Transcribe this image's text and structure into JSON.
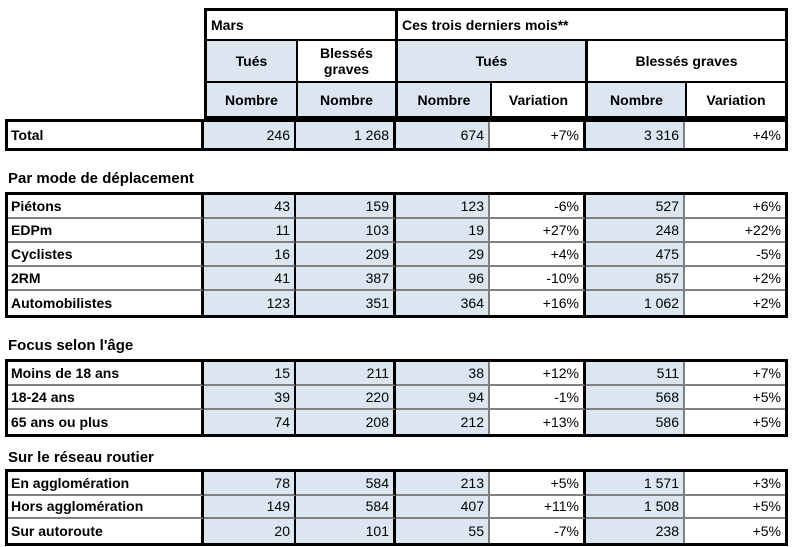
{
  "table": {
    "header": {
      "row1": [
        "Mars",
        "Ces trois derniers mois**"
      ],
      "row2": [
        "Tués",
        "Blessés graves",
        "Tués",
        "Blessés graves"
      ],
      "row3": [
        "Nombre",
        "Nombre",
        "Nombre",
        "Variation",
        "Nombre",
        "Variation"
      ]
    },
    "total_row": {
      "label": "Total",
      "values": [
        "246",
        "1 268",
        "674",
        "+7%",
        "3 316",
        "+4%"
      ]
    },
    "sections": [
      {
        "title": "Par mode de déplacement",
        "rows": [
          {
            "label": "Piétons",
            "values": [
              "43",
              "159",
              "123",
              "-6%",
              "527",
              "+6%"
            ]
          },
          {
            "label": "EDPm",
            "values": [
              "11",
              "103",
              "19",
              "+27%",
              "248",
              "+22%"
            ]
          },
          {
            "label": "Cyclistes",
            "values": [
              "16",
              "209",
              "29",
              "+4%",
              "475",
              "-5%"
            ]
          },
          {
            "label": "2RM",
            "values": [
              "41",
              "387",
              "96",
              "-10%",
              "857",
              "+2%"
            ]
          },
          {
            "label": "Automobilistes",
            "values": [
              "123",
              "351",
              "364",
              "+16%",
              "1 062",
              "+2%"
            ]
          }
        ]
      },
      {
        "title": "Focus selon l'âge",
        "rows": [
          {
            "label": "Moins de 18 ans",
            "values": [
              "15",
              "211",
              "38",
              "+12%",
              "511",
              "+7%"
            ]
          },
          {
            "label": "18-24 ans",
            "values": [
              "39",
              "220",
              "94",
              "-1%",
              "568",
              "+5%"
            ]
          },
          {
            "label": "65 ans ou plus",
            "values": [
              "74",
              "208",
              "212",
              "+13%",
              "586",
              "+5%"
            ]
          }
        ]
      },
      {
        "title": "Sur le réseau routier",
        "rows": [
          {
            "label": "En agglomération",
            "values": [
              "78",
              "584",
              "213",
              "+5%",
              "1 571",
              "+3%"
            ]
          },
          {
            "label": "Hors agglomération",
            "values": [
              "149",
              "584",
              "407",
              "+11%",
              "1 508",
              "+5%"
            ]
          },
          {
            "label": "Sur autoroute",
            "values": [
              "20",
              "101",
              "55",
              "-7%",
              "238",
              "+5%"
            ]
          }
        ]
      }
    ],
    "colors": {
      "header_fill": "#dce6f1",
      "border_black": "#000000",
      "border_gray": "#808080",
      "text": "#000000",
      "background": "#ffffff"
    }
  }
}
